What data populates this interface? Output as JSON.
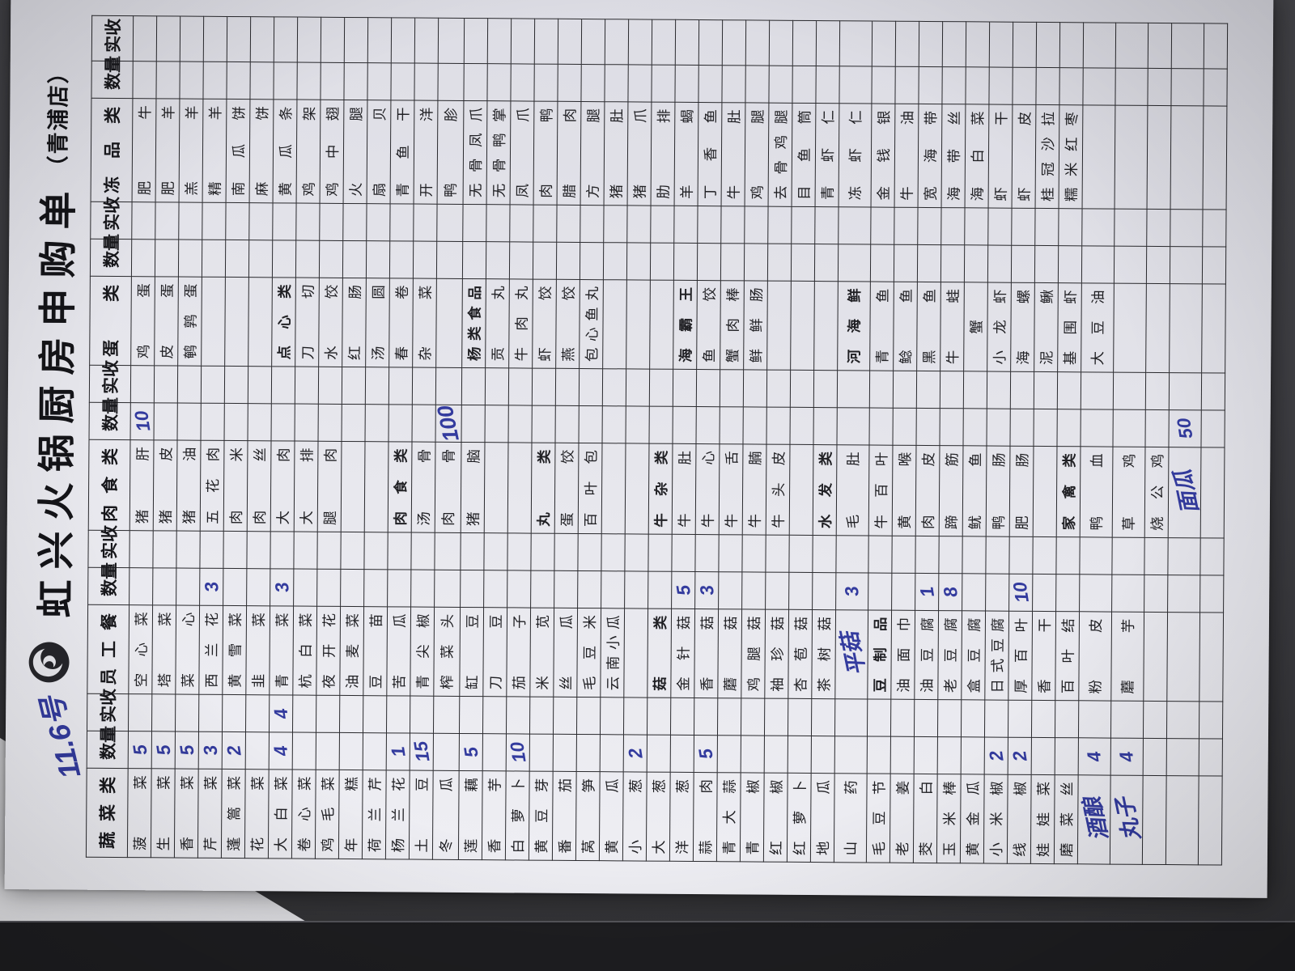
{
  "photo": {
    "date_note": "11.6号",
    "colors": {
      "handwriting_ink": "#333b9e",
      "paper": "#e7e7ed",
      "grid_line": "#2a2a2e",
      "background": "#3e3e43"
    }
  },
  "header": {
    "title": "虹兴火锅厨房申购单",
    "branch": "（青浦店）",
    "logo": "hongxing-hotpot-logo"
  },
  "table": {
    "column_headers": [
      "蔬菜类",
      "数量",
      "实收",
      "员工餐",
      "数量",
      "实收",
      "肉食类",
      "数量",
      "实收",
      "蛋类",
      "数量",
      "实收",
      "冻品类",
      "数量",
      "实收"
    ],
    "subcategory_labels": [
      "点心类",
      "杨类食品",
      "海霸王",
      "河海鲜",
      "肉食类",
      "丸类",
      "牛杂类",
      "水发类",
      "家禽类",
      "菇类",
      "豆制品"
    ],
    "handwritten_labels": [
      "平菇",
      "酒酿",
      "丸子",
      "面瓜"
    ],
    "rows": [
      [
        "菠菜",
        "5",
        "",
        "空心菜",
        "",
        "",
        "猪肝",
        "10",
        "",
        "鸡蛋",
        "",
        "",
        "肥牛",
        "",
        ""
      ],
      [
        "生菜",
        "5",
        "",
        "塔菜",
        "",
        "",
        "猪皮",
        "",
        "",
        "皮蛋",
        "",
        "",
        "肥羊",
        "",
        ""
      ],
      [
        "香菜",
        "5",
        "",
        "菜心",
        "",
        "",
        "猪油",
        "",
        "",
        "鹌鹑蛋",
        "",
        "",
        "羔羊",
        "",
        ""
      ],
      [
        "芹菜",
        "3",
        "",
        "西兰花",
        "3",
        "",
        "五花肉",
        "",
        "",
        "",
        "",
        "",
        "精羊",
        "",
        ""
      ],
      [
        "蓬篙菜",
        "2",
        "",
        "黄雪菜",
        "",
        "",
        "肉米",
        "",
        "",
        "",
        "",
        "",
        "南瓜饼",
        "",
        ""
      ],
      [
        "花菜",
        "",
        "",
        "韭菜",
        "",
        "",
        "肉丝",
        "",
        "",
        "",
        "",
        "",
        "麻饼",
        "",
        ""
      ],
      [
        "大白菜",
        "4",
        "4",
        "青菜",
        "3",
        "",
        "大肉",
        "",
        "",
        "点心类",
        "",
        "",
        "黄瓜条",
        "",
        ""
      ],
      [
        "卷心菜",
        "",
        "",
        "杭白菜",
        "",
        "",
        "大排",
        "",
        "",
        "刀切",
        "",
        "",
        "鸡架",
        "",
        ""
      ],
      [
        "鸡毛菜",
        "",
        "",
        "夜开花",
        "",
        "",
        "腿肉",
        "",
        "",
        "水饺",
        "",
        "",
        "鸡中翅",
        "",
        ""
      ],
      [
        "年糕",
        "",
        "",
        "油麦菜",
        "",
        "",
        "",
        "",
        "",
        "红肠",
        "",
        "",
        "火腿",
        "",
        ""
      ],
      [
        "荷兰芹",
        "",
        "",
        "豆苗",
        "",
        "",
        "",
        "",
        "",
        "汤圆",
        "",
        "",
        "扇贝",
        "",
        ""
      ],
      [
        "杨兰花",
        "1",
        "",
        "苦瓜",
        "",
        "",
        "肉食类",
        "",
        "",
        "春卷",
        "",
        "",
        "青鱼干",
        "",
        ""
      ],
      [
        "土豆",
        "15",
        "",
        "青尖椒",
        "",
        "",
        "汤骨",
        "",
        "",
        "杂菜",
        "",
        "",
        "开洋",
        "",
        ""
      ],
      [
        "冬瓜",
        "",
        "",
        "榨菜头",
        "",
        "",
        "肉骨",
        "100",
        "",
        "",
        "",
        "",
        "鸭胗",
        "",
        ""
      ],
      [
        "莲藕",
        "5",
        "",
        "缸豆",
        "",
        "",
        "猪脑",
        "",
        "",
        "杨类食品",
        "",
        "",
        "无骨凤爪",
        "",
        ""
      ],
      [
        "香芋",
        "",
        "",
        "刀豆",
        "",
        "",
        "",
        "",
        "",
        "贡丸",
        "",
        "",
        "无骨鸭掌",
        "",
        ""
      ],
      [
        "白萝卜",
        "10",
        "",
        "茄子",
        "",
        "",
        "",
        "",
        "",
        "牛肉丸",
        "",
        "",
        "凤爪",
        "",
        ""
      ],
      [
        "黄豆芽",
        "",
        "",
        "米苋",
        "",
        "",
        "丸类",
        "",
        "",
        "虾饺",
        "",
        "",
        "肉鸭",
        "",
        ""
      ],
      [
        "番茄",
        "",
        "",
        "丝瓜",
        "",
        "",
        "蛋饺",
        "",
        "",
        "燕饺",
        "",
        "",
        "腊肉",
        "",
        ""
      ],
      [
        "莴笋",
        "",
        "",
        "毛豆米",
        "",
        "",
        "百叶包",
        "",
        "",
        "包心鱼丸",
        "",
        "",
        "方腿",
        "",
        ""
      ],
      [
        "黄瓜",
        "",
        "",
        "云南小瓜",
        "",
        "",
        "",
        "",
        "",
        "",
        "",
        "",
        "猪肚",
        "",
        ""
      ],
      [
        "小葱",
        "2",
        "",
        "",
        "",
        "",
        "",
        "",
        "",
        "",
        "",
        "",
        "猪爪",
        "",
        ""
      ],
      [
        "大葱",
        "",
        "",
        "菇类",
        "",
        "",
        "牛杂类",
        "",
        "",
        "",
        "",
        "",
        "肋排",
        "",
        ""
      ],
      [
        "洋葱",
        "",
        "",
        "金针菇",
        "5",
        "",
        "牛肚",
        "",
        "",
        "海霸王",
        "",
        "",
        "羊蝎",
        "",
        ""
      ],
      [
        "蒜肉",
        "5",
        "",
        "香菇",
        "3",
        "",
        "牛心",
        "",
        "",
        "鱼饺",
        "",
        "",
        "丁香鱼",
        "",
        ""
      ],
      [
        "青大蒜",
        "",
        "",
        "蘑菇",
        "",
        "",
        "牛舌",
        "",
        "",
        "蟹肉棒",
        "",
        "",
        "牛肚",
        "",
        ""
      ],
      [
        "青椒",
        "",
        "",
        "鸡腿菇",
        "",
        "",
        "牛腩",
        "",
        "",
        "鲜鲜肠",
        "",
        "",
        "鸡腿",
        "",
        ""
      ],
      [
        "红椒",
        "",
        "",
        "袖珍菇",
        "",
        "",
        "牛头皮",
        "",
        "",
        "",
        "",
        "",
        "去骨鸡腿",
        "",
        ""
      ],
      [
        "红萝卜",
        "",
        "",
        "杏苞菇",
        "",
        "",
        "",
        "",
        "",
        "",
        "",
        "",
        "目鱼筒",
        "",
        ""
      ],
      [
        "地瓜",
        "",
        "",
        "茶树菇",
        "",
        "",
        "水发类",
        "",
        "",
        "",
        "",
        "",
        "青虾仁",
        "",
        ""
      ],
      [
        "山药",
        "",
        "",
        "平菇",
        "3",
        "",
        "毛肚",
        "",
        "",
        "河海鲜",
        "",
        "",
        "冻虾仁",
        "",
        ""
      ],
      [
        "毛豆节",
        "",
        "",
        "豆制品",
        "",
        "",
        "牛百叶",
        "",
        "",
        "青鱼",
        "",
        "",
        "金钱银",
        "",
        ""
      ],
      [
        "老姜",
        "",
        "",
        "油面巾",
        "",
        "",
        "黄喉",
        "",
        "",
        "鲶鱼",
        "",
        "",
        "牛油",
        "",
        ""
      ],
      [
        "茭白",
        "",
        "",
        "油豆腐",
        "1",
        "",
        "肉皮",
        "",
        "",
        "黑鱼",
        "",
        "",
        "宽海带",
        "",
        ""
      ],
      [
        "玉米棒",
        "",
        "",
        "老豆腐",
        "8",
        "",
        "蹄筋",
        "",
        "",
        "牛蛙",
        "",
        "",
        "海带丝",
        "",
        ""
      ],
      [
        "黄金瓜",
        "",
        "",
        "盒豆腐",
        "",
        "",
        "鱿鱼",
        "",
        "",
        "蟹",
        "",
        "",
        "海白菜",
        "",
        ""
      ],
      [
        "小米椒",
        "2",
        "",
        "日式豆腐",
        "",
        "",
        "鸭肠",
        "",
        "",
        "小龙虾",
        "",
        "",
        "虾干",
        "",
        ""
      ],
      [
        "线椒",
        "2",
        "",
        "厚百叶",
        "10",
        "",
        "肥肠",
        "",
        "",
        "海螺",
        "",
        "",
        "虾皮",
        "",
        ""
      ],
      [
        "娃娃菜",
        "",
        "",
        "香干",
        "",
        "",
        "",
        "",
        "",
        "泥鳅",
        "",
        "",
        "桂冠沙拉",
        "",
        ""
      ],
      [
        "磨菜丝",
        "",
        "",
        "百叶结",
        "",
        "",
        "家禽类",
        "",
        "",
        "基围虾",
        "",
        "",
        "糯米红枣",
        "",
        ""
      ],
      [
        "酒酿",
        "4",
        "",
        "粉皮",
        "",
        "",
        "鸭血",
        "",
        "",
        "大豆油",
        "",
        "",
        "",
        "",
        ""
      ],
      [
        "丸子",
        "4",
        "",
        "蘑芋",
        "",
        "",
        "草鸡",
        "",
        "",
        "",
        "",
        "",
        "",
        "",
        ""
      ],
      [
        "",
        "",
        "",
        "",
        "",
        "",
        "烧公鸡",
        "",
        "",
        "",
        "",
        "",
        "",
        "",
        ""
      ],
      [
        "",
        "",
        "",
        "",
        "",
        "",
        "面瓜",
        "50",
        "",
        "",
        "",
        "",
        "",
        "",
        ""
      ],
      [
        "",
        "",
        "",
        "",
        "",
        "",
        "",
        "",
        "",
        "",
        "",
        "",
        "",
        "",
        ""
      ]
    ]
  }
}
